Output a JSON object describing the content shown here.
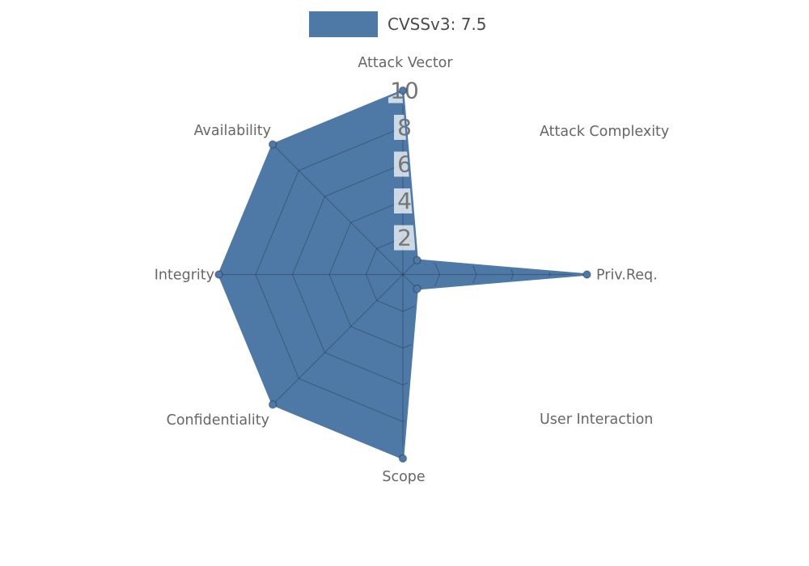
{
  "legend": {
    "label": "CVSSv3: 7.5",
    "swatch_color": "#4E79A7"
  },
  "chart_data": {
    "type": "radar",
    "categories": [
      "Attack Vector",
      "Attack Complexity",
      "Priv.Req.",
      "User Interaction",
      "Scope",
      "Confidentiality",
      "Integrity",
      "Availability"
    ],
    "series": [
      {
        "name": "CVSSv3: 7.5",
        "values": [
          10,
          1.1,
          10,
          1.1,
          10,
          10,
          10,
          10
        ]
      }
    ],
    "radial_ticks": [
      2,
      4,
      6,
      8,
      10
    ],
    "rlim": [
      0,
      10
    ],
    "start_axis": "top",
    "direction": "clockwise",
    "grid": true,
    "grid_visible_only_inside_polygon": true,
    "legend_position": "top-center",
    "fill_color": "#4E79A7",
    "grid_color": "rgba(0,0,0,0.22)",
    "marker_edge_color": "rgba(0,0,0,0.25)",
    "tick_label_color": "#757575",
    "tick_box_color": "rgba(255,255,255,0.72)",
    "axis_label_color": "#666666"
  }
}
